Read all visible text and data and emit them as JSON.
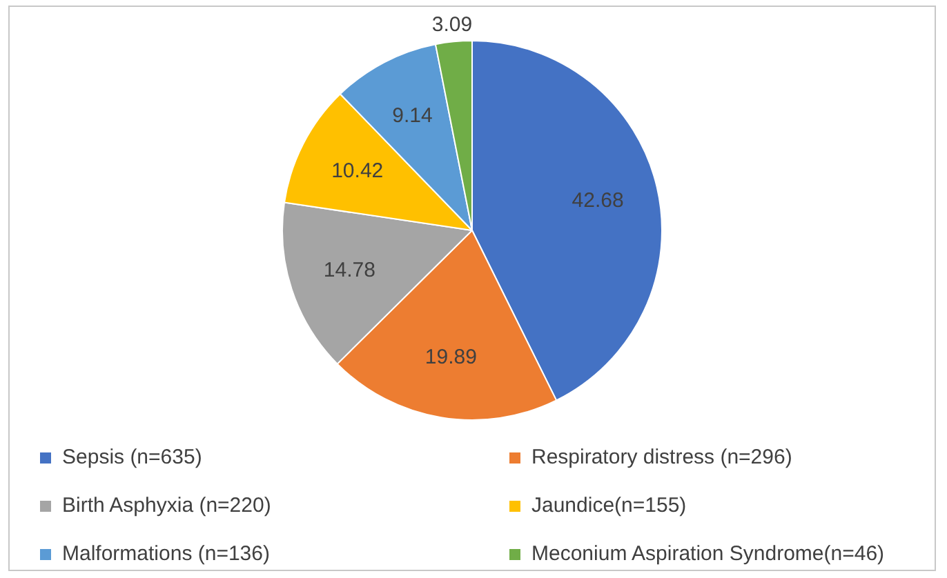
{
  "chart_data": {
    "type": "pie",
    "categories": [
      "Sepsis (n=635)",
      "Respiratory distress (n=296)",
      "Birth Asphyxia (n=220)",
      "Jaundice(n=155)",
      "Malformations (n=136)",
      "Meconium Aspiration Syndrome(n=46)"
    ],
    "values": [
      42.68,
      19.89,
      14.78,
      10.42,
      9.14,
      3.09
    ],
    "colors": [
      "#4472c4",
      "#ed7d31",
      "#a5a5a5",
      "#ffc000",
      "#5b9bd5",
      "#70ad47"
    ],
    "data_labels": true,
    "legend": "bottom"
  }
}
